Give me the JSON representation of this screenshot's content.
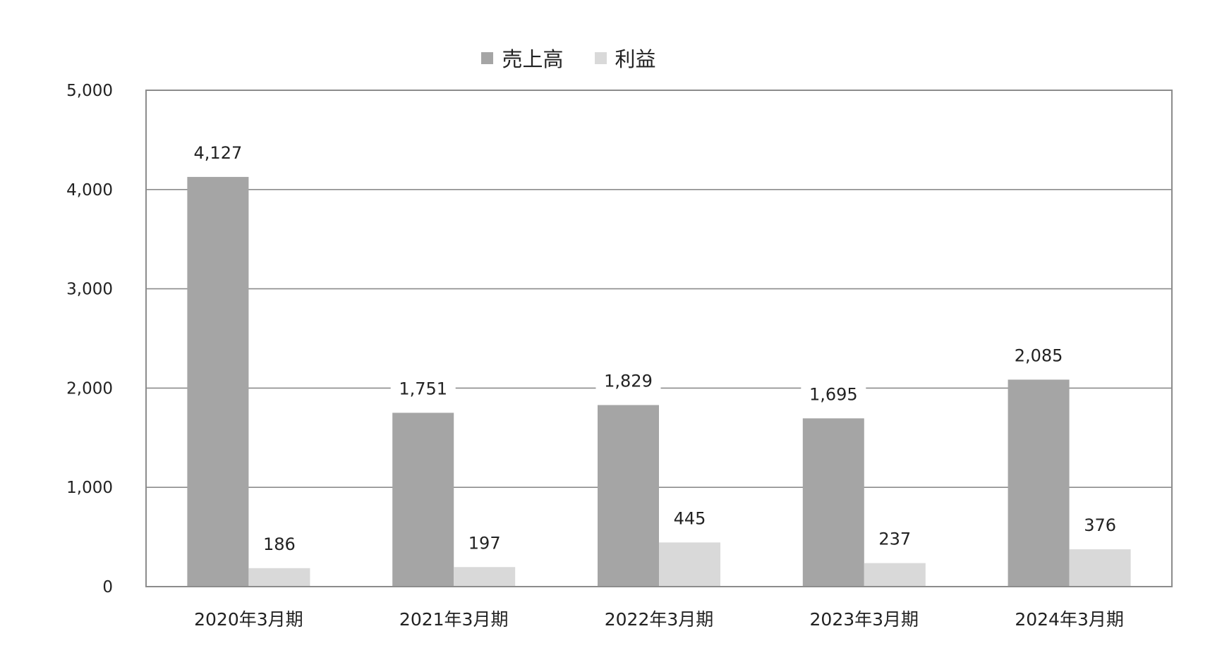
{
  "chart_data": {
    "type": "bar",
    "title": "",
    "xlabel": "",
    "ylabel": "",
    "categories": [
      "2020年3月期",
      "2021年3月期",
      "2022年3月期",
      "2023年3月期",
      "2024年3月期"
    ],
    "series": [
      {
        "name": "売上高",
        "values": [
          4127,
          1751,
          1829,
          1695,
          2085
        ],
        "color": "#a5a5a5"
      },
      {
        "name": "利益",
        "values": [
          186,
          197,
          445,
          237,
          376
        ],
        "color": "#d9d9d9"
      }
    ],
    "ylim": [
      0,
      5000
    ],
    "yticks": [
      0,
      1000,
      2000,
      3000,
      4000,
      5000
    ],
    "ytick_labels": [
      "0",
      "1,000",
      "2,000",
      "3,000",
      "4,000",
      "5,000"
    ],
    "value_labels": [
      [
        "4,127",
        "1,751",
        "1,829",
        "1,695",
        "2,085"
      ],
      [
        "186",
        "197",
        "445",
        "237",
        "376"
      ]
    ],
    "grid": true,
    "legend_position": "top-center"
  }
}
